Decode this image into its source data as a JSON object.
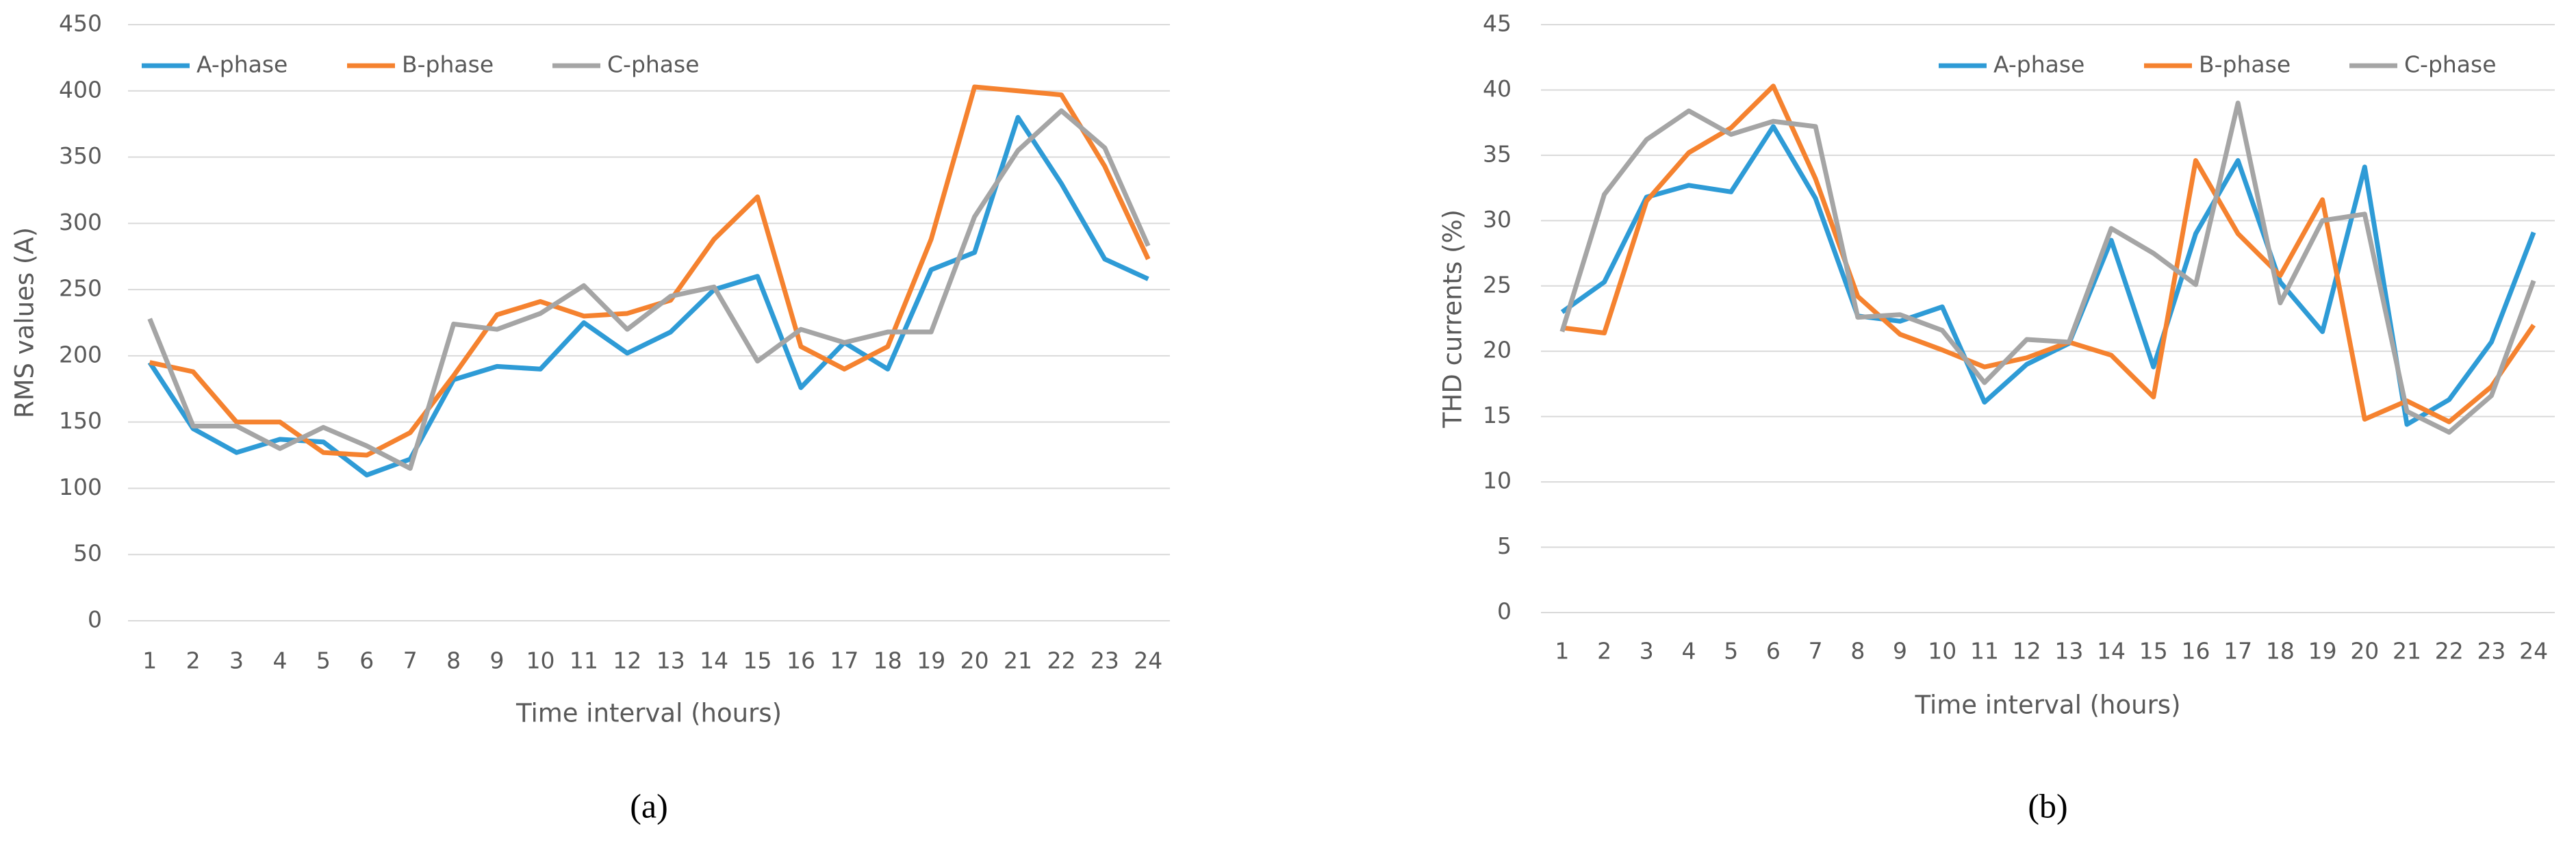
{
  "chart_data": [
    {
      "type": "line",
      "caption": "(a)",
      "x_label": "Time interval (hours)",
      "y_label": "RMS values (A)",
      "categories": [
        "1",
        "2",
        "3",
        "4",
        "5",
        "6",
        "7",
        "8",
        "9",
        "10",
        "11",
        "12",
        "13",
        "14",
        "15",
        "16",
        "17",
        "18",
        "19",
        "20",
        "21",
        "22",
        "23",
        "24"
      ],
      "ylim": [
        0,
        450
      ],
      "yticks": [
        0,
        50,
        100,
        150,
        200,
        250,
        300,
        350,
        400,
        450
      ],
      "grid": true,
      "legend": "upper left",
      "series": [
        {
          "name": "A-phase",
          "color": "#2e9bd6",
          "values": [
            195,
            145,
            127,
            137,
            135,
            110,
            122,
            182,
            192,
            190,
            225,
            202,
            218,
            250,
            260,
            176,
            210,
            190,
            265,
            278,
            380,
            330,
            273,
            258
          ]
        },
        {
          "name": "B-phase",
          "color": "#f5822f",
          "values": [
            195,
            188,
            150,
            150,
            127,
            125,
            142,
            185,
            231,
            241,
            230,
            232,
            242,
            288,
            320,
            207,
            190,
            207,
            288,
            403,
            400,
            397,
            343,
            273
          ]
        },
        {
          "name": "C-phase",
          "color": "#a5a5a5",
          "values": [
            228,
            147,
            147,
            130,
            146,
            132,
            115,
            224,
            220,
            232,
            253,
            220,
            245,
            252,
            196,
            220,
            210,
            218,
            218,
            305,
            355,
            385,
            357,
            283
          ]
        }
      ]
    },
    {
      "type": "line",
      "caption": "(b)",
      "x_label": "Time interval (hours)",
      "y_label": "THD currents (%)",
      "categories": [
        "1",
        "2",
        "3",
        "4",
        "5",
        "6",
        "7",
        "8",
        "9",
        "10",
        "11",
        "12",
        "13",
        "14",
        "15",
        "16",
        "17",
        "18",
        "19",
        "20",
        "21",
        "22",
        "23",
        "24"
      ],
      "ylim": [
        0,
        45
      ],
      "yticks": [
        0,
        5,
        10,
        15,
        20,
        25,
        30,
        35,
        40,
        45
      ],
      "grid": true,
      "legend": "upper right",
      "series": [
        {
          "name": "A-phase",
          "color": "#2e9bd6",
          "values": [
            23,
            25.3,
            31.8,
            32.7,
            32.2,
            37.2,
            31.7,
            22.7,
            22.3,
            23.4,
            16.1,
            19,
            20.6,
            28.5,
            18.8,
            29,
            34.6,
            25.3,
            21.5,
            34.1,
            14.4,
            16.3,
            20.7,
            29.1
          ]
        },
        {
          "name": "B-phase",
          "color": "#f5822f",
          "values": [
            21.8,
            21.4,
            31.5,
            35.2,
            37.1,
            40.3,
            33.2,
            24.2,
            21.3,
            20.1,
            18.8,
            19.5,
            20.7,
            19.7,
            16.5,
            34.6,
            29,
            25.8,
            31.6,
            14.8,
            16.2,
            14.6,
            17.3,
            22
          ]
        },
        {
          "name": "C-phase",
          "color": "#a5a5a5",
          "values": [
            21.5,
            32,
            36.2,
            38.4,
            36.6,
            37.6,
            37.2,
            22.6,
            22.8,
            21.6,
            17.6,
            20.9,
            20.7,
            29.4,
            27.5,
            25.1,
            39,
            23.7,
            30,
            30.5,
            15.4,
            13.8,
            16.6,
            25.4
          ]
        }
      ]
    }
  ]
}
